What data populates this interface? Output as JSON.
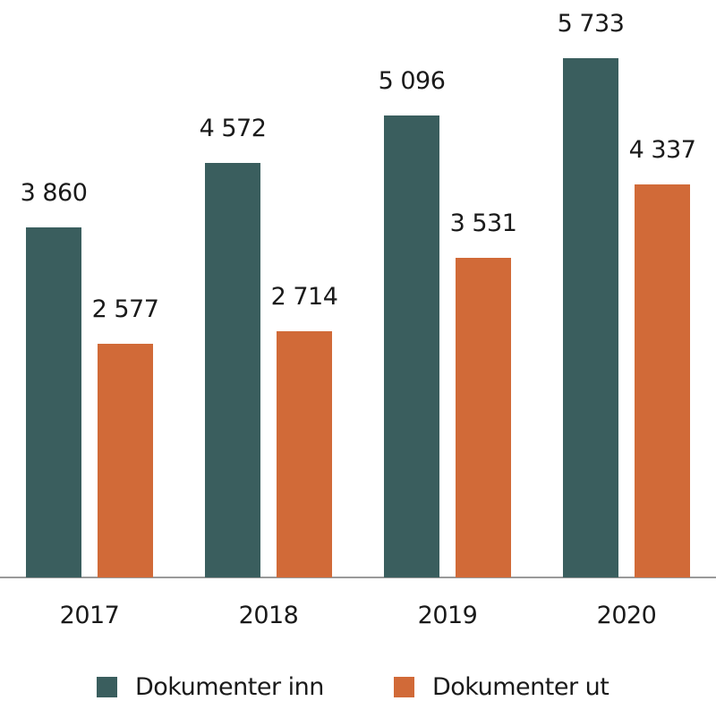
{
  "chart_data": {
    "type": "bar",
    "title": "",
    "xlabel": "",
    "ylabel": "",
    "categories": [
      "2017",
      "2018",
      "2019",
      "2020"
    ],
    "series": [
      {
        "name": "Dokumenter inn",
        "color": "#3a5e5e",
        "values": [
          3860,
          4572,
          5096,
          5733
        ],
        "labels": [
          "3 860",
          "4 572",
          "5 096",
          "5 733"
        ]
      },
      {
        "name": "Dokumenter ut",
        "color": "#d16a38",
        "values": [
          2577,
          2714,
          3531,
          4337
        ],
        "labels": [
          "2 577",
          "2 714",
          "3 531",
          "4 337"
        ]
      }
    ],
    "ylim": [
      0,
      5733
    ],
    "grid": false,
    "legend_position": "bottom"
  },
  "legend": {
    "items": [
      {
        "label": "Dokumenter inn",
        "color": "#3a5e5e"
      },
      {
        "label": "Dokumenter ut",
        "color": "#d16a38"
      }
    ]
  }
}
